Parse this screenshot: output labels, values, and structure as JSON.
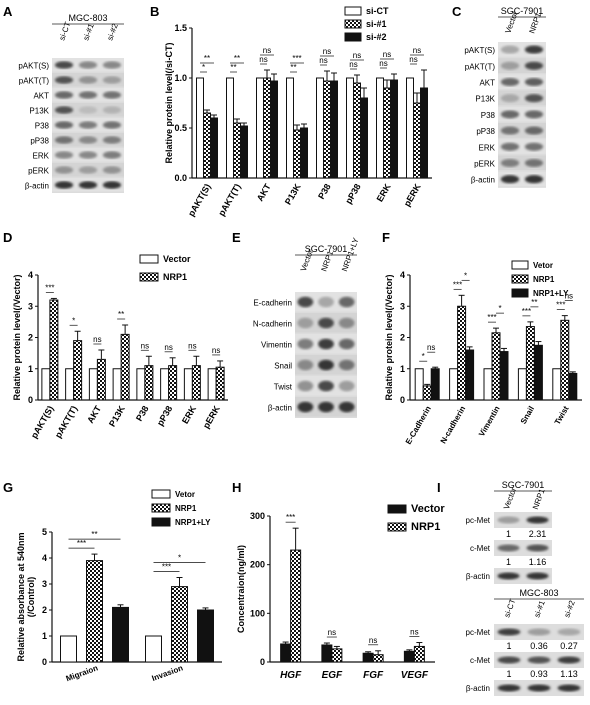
{
  "panel_letters": [
    "A",
    "B",
    "C",
    "D",
    "E",
    "F",
    "G",
    "H",
    "I"
  ],
  "blot_A": {
    "header": "MGC-803",
    "lanes": [
      "si-CT",
      "si-#1",
      "si-#2"
    ],
    "bands": [
      "pAKT(S)",
      "pAKT(T)",
      "AKT",
      "P13K",
      "P38",
      "pP38",
      "ERK",
      "pERK",
      "β-actin"
    ],
    "intensity": [
      [
        0.75,
        0.45,
        0.45
      ],
      [
        0.7,
        0.4,
        0.35
      ],
      [
        0.6,
        0.55,
        0.55
      ],
      [
        0.7,
        0.2,
        0.25
      ],
      [
        0.6,
        0.5,
        0.55
      ],
      [
        0.55,
        0.45,
        0.5
      ],
      [
        0.45,
        0.45,
        0.5
      ],
      [
        0.4,
        0.35,
        0.4
      ],
      [
        0.85,
        0.85,
        0.85
      ]
    ]
  },
  "blot_C": {
    "header": "SGC-7901",
    "lanes": [
      "Vector",
      "NRP1"
    ],
    "bands": [
      "pAKT(S)",
      "pAKT(T)",
      "AKT",
      "P13K",
      "P38",
      "pP38",
      "ERK",
      "pERK",
      "β-actin"
    ],
    "intensity": [
      [
        0.3,
        0.8
      ],
      [
        0.35,
        0.75
      ],
      [
        0.6,
        0.65
      ],
      [
        0.3,
        0.7
      ],
      [
        0.6,
        0.6
      ],
      [
        0.55,
        0.6
      ],
      [
        0.55,
        0.55
      ],
      [
        0.5,
        0.55
      ],
      [
        0.85,
        0.85
      ]
    ]
  },
  "blot_E": {
    "header": "SGC-7901",
    "lanes": [
      "Vector",
      "NRP1",
      "NRP1\n+LY"
    ],
    "bands": [
      "E-cadherin",
      "N-cadherin",
      "Vimentin",
      "Snail",
      "Twist",
      "β-actin"
    ],
    "intensity": [
      [
        0.75,
        0.3,
        0.6
      ],
      [
        0.35,
        0.75,
        0.45
      ],
      [
        0.5,
        0.8,
        0.6
      ],
      [
        0.45,
        0.85,
        0.55
      ],
      [
        0.4,
        0.75,
        0.35
      ],
      [
        0.85,
        0.85,
        0.85
      ]
    ]
  },
  "blot_I_top": {
    "header": "SGC-7901",
    "lanes": [
      "Vector",
      "NRP1"
    ],
    "bands": [
      "pc-Met",
      "c-Met",
      "β-actin"
    ],
    "intensity": [
      [
        0.35,
        0.85
      ],
      [
        0.6,
        0.7
      ],
      [
        0.85,
        0.85
      ]
    ],
    "numbers": [
      [
        "1",
        "2.31"
      ],
      [
        "1",
        "1.16"
      ]
    ]
  },
  "blot_I_bottom": {
    "header": "MGC-803",
    "lanes": [
      "si-CT",
      "si-#1",
      "si-#2"
    ],
    "bands": [
      "pc-Met",
      "c-Met",
      "β-actin"
    ],
    "intensity": [
      [
        0.8,
        0.35,
        0.3
      ],
      [
        0.75,
        0.7,
        0.8
      ],
      [
        0.85,
        0.85,
        0.85
      ]
    ],
    "numbers": [
      [
        "1",
        "0.36",
        "0.27"
      ],
      [
        "1",
        "0.93",
        "1.13"
      ]
    ]
  },
  "chart_data": [
    {
      "panel": "B",
      "type": "bar",
      "ylabel": "Relative protein level(/si-CT)",
      "ylim": [
        0,
        1.5
      ],
      "yticks": [
        "0.0",
        "0.5",
        "1.0",
        "1.5"
      ],
      "categories": [
        "pAKT(S)",
        "pAKT(T)",
        "AKT",
        "P13K",
        "P38",
        "pP38",
        "ERK",
        "pERK"
      ],
      "series": [
        {
          "name": "si-CT",
          "values": [
            1,
            1,
            1,
            1,
            1,
            1,
            1,
            1
          ],
          "err": [
            0,
            0,
            0,
            0,
            0,
            0,
            0,
            0
          ],
          "pattern": "white"
        },
        {
          "name": "si-#1",
          "values": [
            0.65,
            0.55,
            1.0,
            0.48,
            0.97,
            0.95,
            0.9,
            0.75
          ],
          "err": [
            0.03,
            0.04,
            0.08,
            0.05,
            0.1,
            0.08,
            0.08,
            0.1
          ],
          "pattern": "check"
        },
        {
          "name": "si-#2",
          "values": [
            0.6,
            0.52,
            0.97,
            0.5,
            0.97,
            0.8,
            0.98,
            0.9
          ],
          "err": [
            0.03,
            0.03,
            0.07,
            0.04,
            0.08,
            0.1,
            0.06,
            0.18
          ],
          "pattern": "black"
        }
      ],
      "sig": [
        [
          "*",
          "**"
        ],
        [
          "**",
          "**"
        ],
        [
          "ns",
          "ns"
        ],
        [
          "**",
          "***"
        ],
        [
          "ns",
          "ns"
        ],
        [
          "ns",
          "ns"
        ],
        [
          "ns",
          "ns"
        ],
        [
          "ns",
          "ns"
        ]
      ]
    },
    {
      "panel": "D",
      "type": "bar",
      "ylabel": "Relative protein level(/Vector)",
      "ylim": [
        0,
        4
      ],
      "yticks": [
        "0",
        "1",
        "2",
        "3",
        "4"
      ],
      "categories": [
        "pAKT(S)",
        "pAKT(T)",
        "AKT",
        "P13K",
        "P38",
        "pP38",
        "ERK",
        "pERK"
      ],
      "series": [
        {
          "name": "Vector",
          "values": [
            1,
            1,
            1,
            1,
            1,
            1,
            1,
            1
          ],
          "err": [
            0,
            0,
            0,
            0,
            0,
            0,
            0,
            0
          ],
          "pattern": "white"
        },
        {
          "name": "NRP1",
          "values": [
            3.2,
            1.9,
            1.3,
            2.1,
            1.1,
            1.1,
            1.1,
            1.05
          ],
          "err": [
            0.05,
            0.3,
            0.3,
            0.3,
            0.3,
            0.25,
            0.3,
            0.2
          ],
          "pattern": "check"
        }
      ],
      "sig": [
        "***",
        "*",
        "ns",
        "**",
        "ns",
        "ns",
        "ns",
        "ns"
      ]
    },
    {
      "panel": "F",
      "type": "bar",
      "ylabel": "Relative protein level(/Vector)",
      "ylim": [
        0,
        4
      ],
      "yticks": [
        "0",
        "1",
        "2",
        "3",
        "4"
      ],
      "categories": [
        "E-Cadherin",
        "N-cadherin",
        "Vimentin",
        "Snail",
        "Twist"
      ],
      "series": [
        {
          "name": "Vetor",
          "values": [
            1,
            1,
            1,
            1,
            1
          ],
          "err": [
            0,
            0,
            0,
            0,
            0
          ],
          "pattern": "white"
        },
        {
          "name": "NRP1",
          "values": [
            0.45,
            3.0,
            2.15,
            2.35,
            2.55
          ],
          "err": [
            0.05,
            0.35,
            0.15,
            0.15,
            0.15
          ],
          "pattern": "check"
        },
        {
          "name": "NRP1+LY",
          "values": [
            1.0,
            1.6,
            1.55,
            1.75,
            0.85
          ],
          "err": [
            0.05,
            0.1,
            0.1,
            0.12,
            0.05
          ],
          "pattern": "black"
        }
      ],
      "sig": [
        [
          "*",
          "ns"
        ],
        [
          "***",
          "*"
        ],
        [
          "***",
          "*"
        ],
        [
          "***",
          "**"
        ],
        [
          "***",
          "ns"
        ]
      ]
    },
    {
      "panel": "G",
      "type": "bar",
      "ylabel": "Relative absorbance at 540nm\n(/Control)",
      "ylim": [
        0,
        5
      ],
      "yticks": [
        "0",
        "1",
        "2",
        "3",
        "4",
        "5"
      ],
      "categories": [
        "Migraion",
        "Invasion"
      ],
      "series": [
        {
          "name": "Vetor",
          "values": [
            1,
            1
          ],
          "err": [
            0,
            0
          ],
          "pattern": "white"
        },
        {
          "name": "NRP1",
          "values": [
            3.9,
            2.9
          ],
          "err": [
            0.25,
            0.35
          ],
          "pattern": "check"
        },
        {
          "name": "NRP1+LY",
          "values": [
            2.1,
            2.0
          ],
          "err": [
            0.1,
            0.08
          ],
          "pattern": "black"
        }
      ],
      "sig": [
        [
          "***",
          "**"
        ],
        [
          "***",
          "*"
        ]
      ]
    },
    {
      "panel": "H",
      "type": "bar",
      "ylabel": "Concentraion(ng/ml)",
      "ylim": [
        0,
        300
      ],
      "yticks": [
        "0",
        "100",
        "200",
        "300"
      ],
      "categories": [
        "HGF",
        "EGF",
        "FGF",
        "VEGF"
      ],
      "series": [
        {
          "name": "Vector",
          "values": [
            37,
            35,
            18,
            22
          ],
          "err": [
            4,
            4,
            3,
            3
          ],
          "pattern": "black"
        },
        {
          "name": "NRP1",
          "values": [
            230,
            27,
            15,
            32
          ],
          "err": [
            45,
            5,
            8,
            8
          ],
          "pattern": "check"
        }
      ],
      "sig": [
        "***",
        "ns",
        "ns",
        "ns"
      ]
    }
  ]
}
